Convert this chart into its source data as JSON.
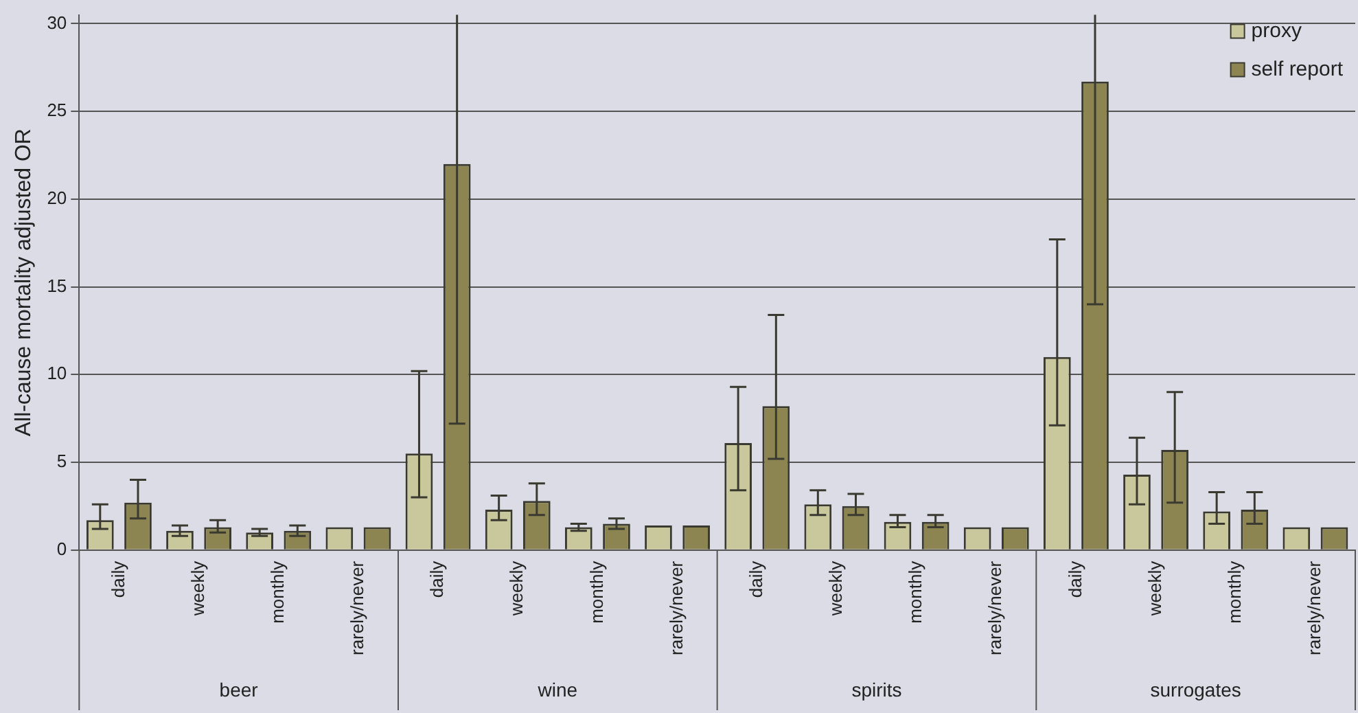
{
  "chart_data": {
    "type": "bar",
    "ylabel": "All-cause mortality adjusted OR",
    "categories": [
      "daily",
      "weekly",
      "monthly",
      "rarely/never",
      "daily",
      "weekly",
      "monthly",
      "rarely/never",
      "daily",
      "weekly",
      "monthly",
      "rarely/never",
      "daily",
      "weekly",
      "monthly",
      "rarely/never"
    ],
    "annotations": [
      "beer",
      "wine",
      "spirits",
      "surrogates"
    ],
    "series": [
      {
        "name": "proxy",
        "color": "#c9c79c",
        "values": [
          1.7,
          1.1,
          1.0,
          1.3,
          5.5,
          2.3,
          1.3,
          1.4,
          6.1,
          2.6,
          1.6,
          1.3,
          11.0,
          4.3,
          2.2,
          1.3
        ],
        "errors": [
          [
            1.2,
            2.6
          ],
          [
            0.8,
            1.4
          ],
          [
            0.8,
            1.2
          ],
          null,
          [
            3.0,
            10.2
          ],
          [
            1.7,
            3.1
          ],
          [
            1.1,
            1.5
          ],
          null,
          [
            3.4,
            9.3
          ],
          [
            2.0,
            3.4
          ],
          [
            1.3,
            2.0
          ],
          null,
          [
            7.1,
            17.7
          ],
          [
            2.6,
            6.4
          ],
          [
            1.5,
            3.3
          ],
          null
        ]
      },
      {
        "name": "self report",
        "color": "#8c8552",
        "values": [
          2.7,
          1.3,
          1.1,
          1.3,
          22.0,
          2.8,
          1.5,
          1.4,
          8.2,
          2.5,
          1.6,
          1.3,
          26.7,
          5.7,
          2.3,
          1.3
        ],
        "errors": [
          [
            1.8,
            4.0
          ],
          [
            1.0,
            1.7
          ],
          [
            0.8,
            1.4
          ],
          null,
          [
            7.2,
            30.5
          ],
          [
            2.0,
            3.8
          ],
          [
            1.2,
            1.8
          ],
          null,
          [
            5.2,
            13.4
          ],
          [
            2.0,
            3.2
          ],
          [
            1.3,
            2.0
          ],
          null,
          [
            14.0,
            30.5
          ],
          [
            2.7,
            9.0
          ],
          [
            1.5,
            3.3
          ],
          null
        ]
      }
    ],
    "ylim": [
      0,
      30.5
    ],
    "yticks": [
      0,
      5,
      10,
      15,
      20,
      25,
      30
    ],
    "grid": "y",
    "legend": "top right"
  }
}
